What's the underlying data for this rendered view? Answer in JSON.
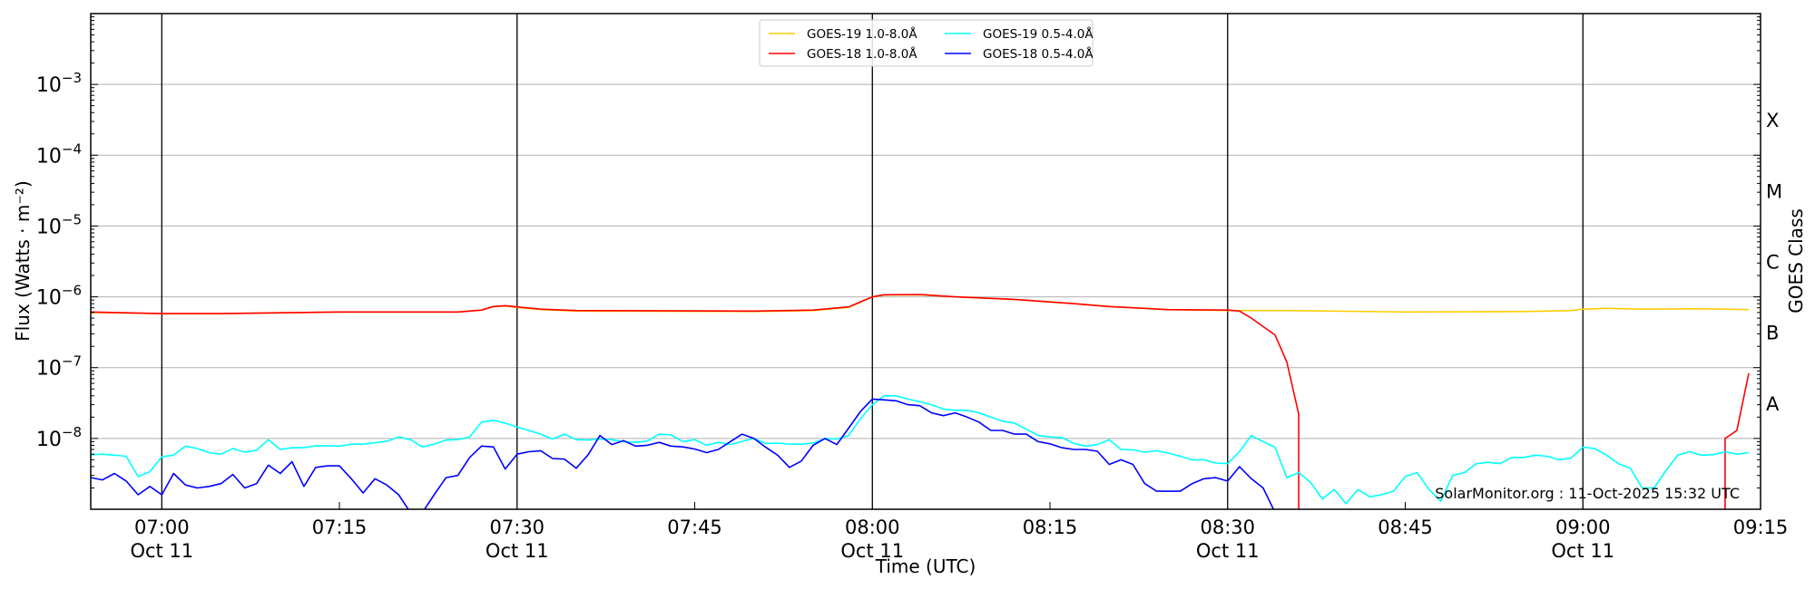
{
  "chart_data": {
    "type": "line",
    "xlabel": "Time (UTC)",
    "ylabel": "Flux (Watts · m⁻²)",
    "ylabel_right": "GOES Class",
    "x_range": [
      "06:54",
      "09:15"
    ],
    "ylim": [
      1e-09,
      0.01
    ],
    "yscale": "log",
    "grid": true,
    "legend_position": "top-center",
    "x_ticks": [
      {
        "time": "07:00",
        "label": "07:00",
        "sublabel": "Oct 11",
        "major_line": true
      },
      {
        "time": "07:15",
        "label": "07:15",
        "sublabel": "",
        "major_line": false
      },
      {
        "time": "07:30",
        "label": "07:30",
        "sublabel": "Oct 11",
        "major_line": true
      },
      {
        "time": "07:45",
        "label": "07:45",
        "sublabel": "",
        "major_line": false
      },
      {
        "time": "08:00",
        "label": "08:00",
        "sublabel": "Oct 11",
        "major_line": true
      },
      {
        "time": "08:15",
        "label": "08:15",
        "sublabel": "",
        "major_line": false
      },
      {
        "time": "08:30",
        "label": "08:30",
        "sublabel": "Oct 11",
        "major_line": true
      },
      {
        "time": "08:45",
        "label": "08:45",
        "sublabel": "",
        "major_line": false
      },
      {
        "time": "09:00",
        "label": "09:00",
        "sublabel": "Oct 11",
        "major_line": true
      },
      {
        "time": "09:15",
        "label": "09:15",
        "sublabel": "",
        "major_line": false
      }
    ],
    "y_ticks": [
      {
        "exp": -8,
        "base": "10",
        "sup": "−8"
      },
      {
        "exp": -7,
        "base": "10",
        "sup": "−7"
      },
      {
        "exp": -6,
        "base": "10",
        "sup": "−6"
      },
      {
        "exp": -5,
        "base": "10",
        "sup": "−5"
      },
      {
        "exp": -4,
        "base": "10",
        "sup": "−4"
      },
      {
        "exp": -3,
        "base": "10",
        "sup": "−3"
      }
    ],
    "goes_classes": [
      {
        "label": "X",
        "log_flux": -3.5
      },
      {
        "label": "M",
        "log_flux": -4.5
      },
      {
        "label": "C",
        "log_flux": -5.5
      },
      {
        "label": "B",
        "log_flux": -6.5
      },
      {
        "label": "A",
        "log_flux": -7.5
      }
    ],
    "annotation": "SolarMonitor.org : 11-Oct-2025 15:32 UTC",
    "series": [
      {
        "name": "GOES-19 1.0-8.0Å",
        "color": "#ffcc00",
        "points": [
          [
            "06:54",
            6e-07
          ],
          [
            "07:00",
            5.8e-07
          ],
          [
            "07:05",
            5.8e-07
          ],
          [
            "07:15",
            6.1e-07
          ],
          [
            "07:25",
            6.1e-07
          ],
          [
            "07:27",
            6.5e-07
          ],
          [
            "07:28",
            7.3e-07
          ],
          [
            "07:29",
            7.4e-07
          ],
          [
            "07:30",
            7.1e-07
          ],
          [
            "07:32",
            6.6e-07
          ],
          [
            "07:35",
            6.3e-07
          ],
          [
            "07:50",
            6.2e-07
          ],
          [
            "07:55",
            6.4e-07
          ],
          [
            "07:58",
            7.1e-07
          ],
          [
            "07:59",
            8.4e-07
          ],
          [
            "08:00",
            1e-06
          ],
          [
            "08:01",
            1.06e-06
          ],
          [
            "08:04",
            1.07e-06
          ],
          [
            "08:07",
            1e-06
          ],
          [
            "08:12",
            9.2e-07
          ],
          [
            "08:17",
            8e-07
          ],
          [
            "08:20",
            7.3e-07
          ],
          [
            "08:25",
            6.6e-07
          ],
          [
            "08:30",
            6.4e-07
          ],
          [
            "08:35",
            6.4e-07
          ],
          [
            "08:45",
            6.1e-07
          ],
          [
            "08:55",
            6.2e-07
          ],
          [
            "08:59",
            6.4e-07
          ],
          [
            "09:00",
            6.7e-07
          ],
          [
            "09:02",
            6.9e-07
          ],
          [
            "09:05",
            6.7e-07
          ],
          [
            "09:10",
            6.8e-07
          ],
          [
            "09:14",
            6.6e-07
          ]
        ]
      },
      {
        "name": "GOES-18 1.0-8.0Å",
        "color": "#ff0000",
        "points": [
          [
            "06:54",
            6.1e-07
          ],
          [
            "07:00",
            5.8e-07
          ],
          [
            "07:05",
            5.8e-07
          ],
          [
            "07:15",
            6.1e-07
          ],
          [
            "07:25",
            6.1e-07
          ],
          [
            "07:27",
            6.5e-07
          ],
          [
            "07:28",
            7.3e-07
          ],
          [
            "07:29",
            7.5e-07
          ],
          [
            "07:30",
            7.2e-07
          ],
          [
            "07:32",
            6.7e-07
          ],
          [
            "07:35",
            6.4e-07
          ],
          [
            "07:50",
            6.3e-07
          ],
          [
            "07:55",
            6.5e-07
          ],
          [
            "07:58",
            7.2e-07
          ],
          [
            "07:59",
            8.5e-07
          ],
          [
            "08:00",
            1e-06
          ],
          [
            "08:01",
            1.07e-06
          ],
          [
            "08:04",
            1.08e-06
          ],
          [
            "08:07",
            1e-06
          ],
          [
            "08:12",
            9.2e-07
          ],
          [
            "08:17",
            8e-07
          ],
          [
            "08:20",
            7.3e-07
          ],
          [
            "08:25",
            6.6e-07
          ],
          [
            "08:30",
            6.5e-07
          ],
          [
            "08:31",
            6.3e-07
          ],
          [
            "08:32",
            5e-07
          ],
          [
            "08:33",
            3.8e-07
          ],
          [
            "08:34",
            2.9e-07
          ],
          [
            "08:35",
            1.2e-07
          ],
          [
            "08:36",
            2.2e-08
          ],
          [
            "08:36",
            1e-10
          ],
          [
            "08:37",
            null
          ],
          [
            "09:11",
            null
          ],
          [
            "09:12",
            1e-10
          ],
          [
            "09:12",
            1e-08
          ],
          [
            "09:13",
            1.3e-08
          ],
          [
            "09:14",
            8.3e-08
          ]
        ]
      },
      {
        "name": "GOES-19 0.5-4.0Å",
        "color": "#00ffff",
        "start": "06:54",
        "step_minutes": 1,
        "values": [
          5.9e-09,
          6e-09,
          5.8e-09,
          5.6e-09,
          2.9e-09,
          3.4e-09,
          5.5e-09,
          5.8e-09,
          7.8e-09,
          7.2e-09,
          6.3e-09,
          6e-09,
          7.2e-09,
          6.4e-09,
          6.8e-09,
          9.6e-09,
          7e-09,
          7.4e-09,
          7.4e-09,
          7.9e-09,
          7.9e-09,
          7.8e-09,
          8.3e-09,
          8.3e-09,
          8.7e-09,
          9.1e-09,
          1.05e-08,
          9.6e-09,
          7.6e-09,
          8.3e-09,
          9.5e-09,
          9.6e-09,
          1.05e-08,
          1.7e-08,
          1.8e-08,
          1.65e-08,
          1.45e-08,
          1.3e-08,
          1.15e-08,
          9.8e-09,
          1.15e-08,
          9.6e-09,
          9.5e-09,
          9.8e-09,
          9.6e-09,
          9e-09,
          8.8e-09,
          9.2e-09,
          1.15e-08,
          1.12e-08,
          9e-09,
          9.6e-09,
          8e-09,
          8.8e-09,
          8.2e-09,
          9.1e-09,
          1e-08,
          8.5e-09,
          8.6e-09,
          8.3e-09,
          8.3e-09,
          8.6e-09,
          1e-08,
          9.8e-09,
          1.1e-08,
          1.9e-08,
          3e-08,
          4e-08,
          4e-08,
          3.6e-08,
          3.3e-08,
          3e-08,
          2.6e-08,
          2.5e-08,
          2.5e-08,
          2.3e-08,
          2e-08,
          1.75e-08,
          1.65e-08,
          1.35e-08,
          1.1e-08,
          1.05e-08,
          1.03e-08,
          8.5e-09,
          7.8e-09,
          8.2e-09,
          9.6e-09,
          7e-09,
          6.9e-09,
          6.4e-09,
          6.7e-09,
          6.2e-09,
          5.6e-09,
          5e-09,
          5e-09,
          4.5e-09,
          4.4e-09,
          6.5e-09,
          1.1e-08,
          9e-09,
          7.5e-09,
          2.8e-09,
          3.3e-09,
          2.4e-09,
          1.4e-09,
          1.9e-09,
          1.2e-09,
          1.9e-09,
          1.5e-09,
          1.6e-09,
          1.8e-09,
          2.9e-09,
          3.3e-09,
          1.9e-09,
          1.3e-09,
          3e-09,
          3.3e-09,
          4.4e-09,
          4.6e-09,
          4.4e-09,
          5.4e-09,
          5.4e-09,
          5.8e-09,
          5.6e-09,
          5e-09,
          5.3e-09,
          7.5e-09,
          7.2e-09,
          5.8e-09,
          4.4e-09,
          3.8e-09,
          2e-09,
          2e-09,
          3.5e-09,
          5.8e-09,
          6.5e-09,
          5.8e-09,
          5.9e-09,
          6.5e-09,
          6e-09,
          6.3e-09
        ]
      },
      {
        "name": "GOES-18 0.5-4.0Å",
        "color": "#0000ff",
        "start": "06:54",
        "step_minutes": 1,
        "values": [
          2.8e-09,
          2.6e-09,
          3.2e-09,
          2.5e-09,
          1.6e-09,
          2.1e-09,
          1.6e-09,
          3.2e-09,
          2.2e-09,
          2e-09,
          2.1e-09,
          2.3e-09,
          3.1e-09,
          2e-09,
          2.3e-09,
          4.2e-09,
          3.2e-09,
          4.7e-09,
          2.1e-09,
          3.9e-09,
          4.1e-09,
          4.1e-09,
          2.7e-09,
          1.7e-09,
          2.7e-09,
          2.2e-09,
          1.6e-09,
          9e-10,
          9e-10,
          1.6e-09,
          2.8e-09,
          3e-09,
          5.4e-09,
          7.8e-09,
          7.6e-09,
          3.7e-09,
          6e-09,
          6.5e-09,
          6.7e-09,
          5.2e-09,
          5.1e-09,
          3.8e-09,
          5.9e-09,
          1.1e-08,
          8.2e-09,
          9.3e-09,
          7.8e-09,
          8e-09,
          8.8e-09,
          7.8e-09,
          7.6e-09,
          7.1e-09,
          6.3e-09,
          7e-09,
          9e-09,
          1.15e-08,
          1e-08,
          7.5e-09,
          5.8e-09,
          3.9e-09,
          4.8e-09,
          8e-09,
          1e-08,
          8.2e-09,
          1.4e-08,
          2.4e-08,
          3.6e-08,
          3.5e-08,
          3.4e-08,
          3e-08,
          2.9e-08,
          2.3e-08,
          2.1e-08,
          2.3e-08,
          2e-08,
          1.7e-08,
          1.3e-08,
          1.3e-08,
          1.15e-08,
          1.15e-08,
          9e-09,
          8.4e-09,
          7.4e-09,
          7e-09,
          7e-09,
          6.6e-09,
          4.3e-09,
          5e-09,
          4.3e-09,
          2.3e-09,
          1.8e-09,
          1.8e-09,
          1.8e-09,
          2.3e-09,
          2.7e-09,
          2.8e-09,
          2.5e-09,
          4e-09,
          2.7e-09,
          2e-09,
          9e-10,
          9e-10,
          9e-10,
          null,
          null,
          null,
          null,
          null,
          null,
          null,
          null,
          null,
          null,
          null,
          null,
          null,
          null,
          null,
          null,
          null,
          null,
          null,
          null,
          null,
          null,
          null,
          null,
          null,
          null,
          null,
          null,
          null,
          null,
          null,
          null,
          null,
          null,
          null,
          null,
          9e-10,
          9e-10,
          9e-10
        ]
      }
    ]
  }
}
